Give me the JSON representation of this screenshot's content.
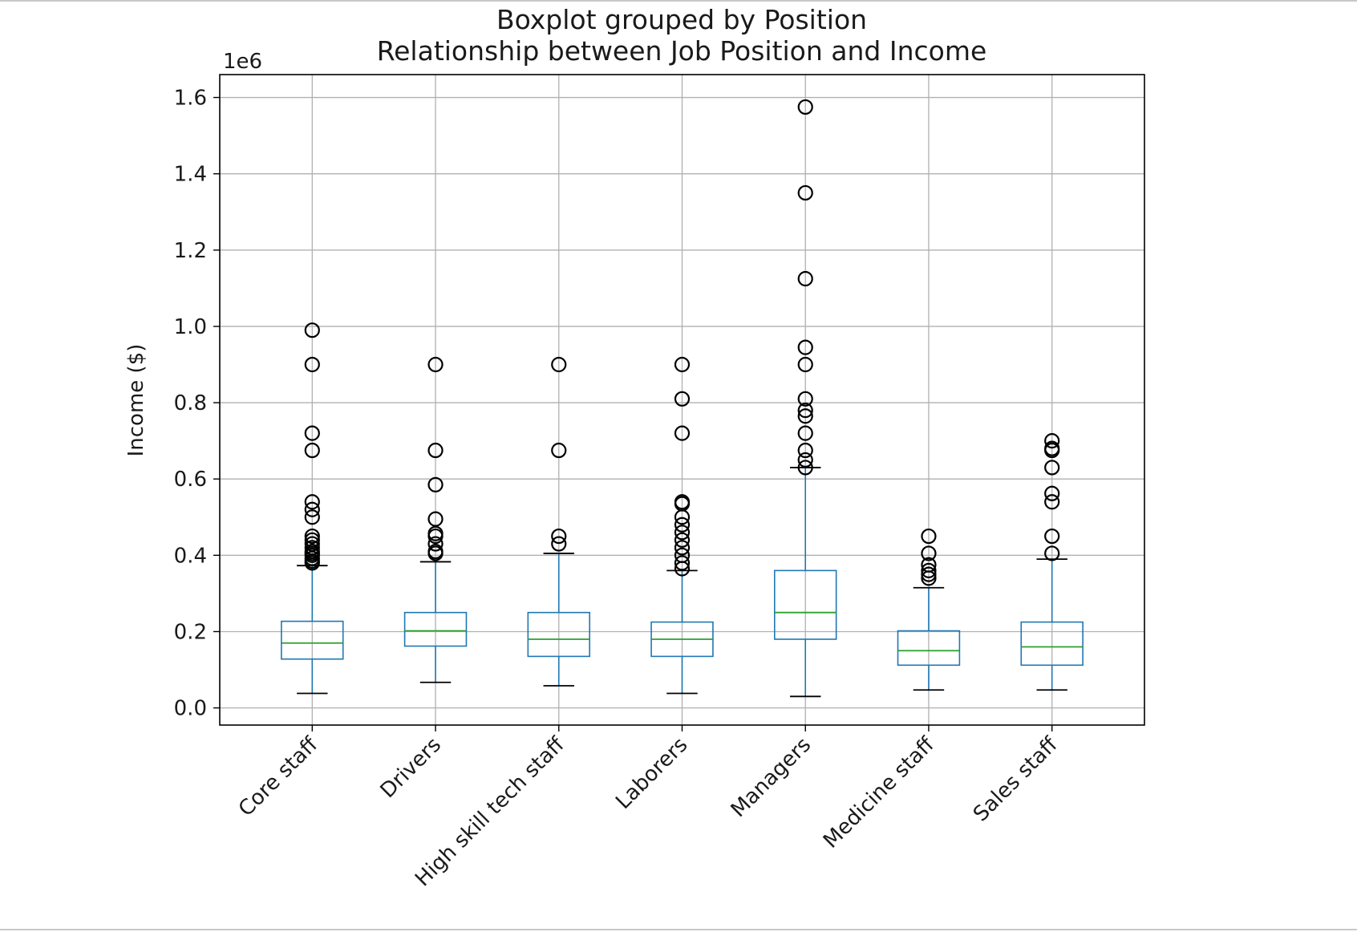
{
  "chart_data": {
    "type": "boxplot",
    "title": "Boxplot grouped by Position",
    "subtitle": "Relationship between Job Position and Income",
    "xlabel": "",
    "ylabel": "Income ($)",
    "y_offset_label": "1e6",
    "ylim": [
      -0.045,
      1.66
    ],
    "yticks": [
      0.0,
      0.2,
      0.4,
      0.6,
      0.8,
      1.0,
      1.2,
      1.4,
      1.6
    ],
    "ytick_labels": [
      "0.0",
      "0.2",
      "0.4",
      "0.6",
      "0.8",
      "1.0",
      "1.2",
      "1.4",
      "1.6"
    ],
    "grid": true,
    "units_note": "values in millions (1e6)",
    "colors": {
      "box": "#1f77b4",
      "median": "#2ca02c",
      "caps": "#000000",
      "fliers": "#000000",
      "grid": "#b0b0b0"
    },
    "categories": [
      "Core staff",
      "Drivers",
      "High skill tech staff",
      "Laborers",
      "Managers",
      "Medicine staff",
      "Sales staff"
    ],
    "boxes": [
      {
        "name": "Core staff",
        "whislo": 0.038,
        "q1": 0.128,
        "med": 0.17,
        "q3": 0.227,
        "whishi": 0.373,
        "fliers": [
          0.38,
          0.385,
          0.392,
          0.4,
          0.405,
          0.41,
          0.42,
          0.43,
          0.44,
          0.45,
          0.5,
          0.52,
          0.54,
          0.675,
          0.72,
          0.9,
          0.99
        ]
      },
      {
        "name": "Drivers",
        "whislo": 0.067,
        "q1": 0.162,
        "med": 0.202,
        "q3": 0.25,
        "whishi": 0.383,
        "fliers": [
          0.405,
          0.41,
          0.43,
          0.45,
          0.457,
          0.495,
          0.585,
          0.675,
          0.9
        ]
      },
      {
        "name": "High skill tech staff",
        "whislo": 0.058,
        "q1": 0.135,
        "med": 0.18,
        "q3": 0.25,
        "whishi": 0.405,
        "fliers": [
          0.43,
          0.45,
          0.675,
          0.9
        ]
      },
      {
        "name": "Laborers",
        "whislo": 0.038,
        "q1": 0.135,
        "med": 0.18,
        "q3": 0.225,
        "whishi": 0.36,
        "fliers": [
          0.365,
          0.38,
          0.4,
          0.42,
          0.44,
          0.46,
          0.48,
          0.5,
          0.535,
          0.54,
          0.72,
          0.81,
          0.9
        ]
      },
      {
        "name": "Managers",
        "whislo": 0.03,
        "q1": 0.18,
        "med": 0.25,
        "q3": 0.36,
        "whishi": 0.63,
        "fliers": [
          0.63,
          0.65,
          0.675,
          0.72,
          0.765,
          0.78,
          0.81,
          0.9,
          0.945,
          1.125,
          1.35,
          1.575
        ]
      },
      {
        "name": "Medicine staff",
        "whislo": 0.047,
        "q1": 0.112,
        "med": 0.15,
        "q3": 0.202,
        "whishi": 0.315,
        "fliers": [
          0.34,
          0.35,
          0.36,
          0.375,
          0.405,
          0.45
        ]
      },
      {
        "name": "Sales staff",
        "whislo": 0.047,
        "q1": 0.112,
        "med": 0.16,
        "q3": 0.225,
        "whishi": 0.39,
        "fliers": [
          0.405,
          0.45,
          0.54,
          0.562,
          0.63,
          0.675,
          0.68,
          0.7
        ]
      }
    ]
  }
}
